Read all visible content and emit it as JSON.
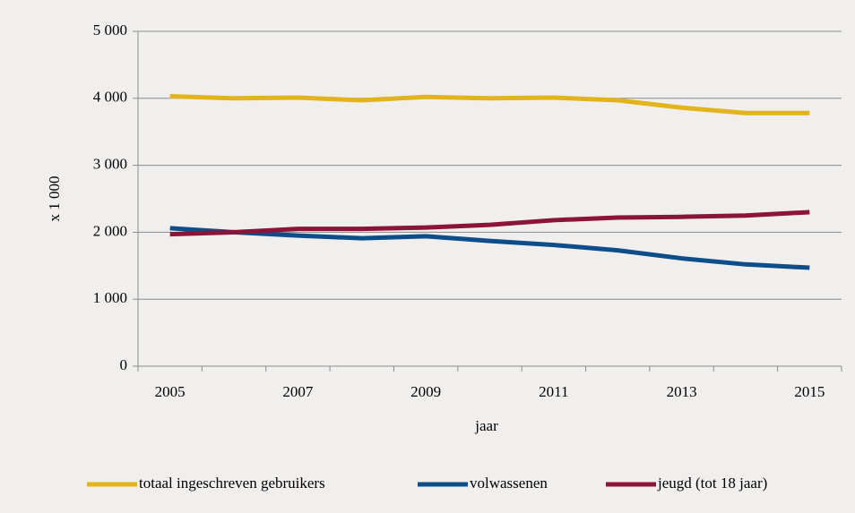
{
  "chart_data": {
    "type": "line",
    "categories": [
      "2005",
      null,
      "2007",
      null,
      "2009",
      null,
      "2011",
      null,
      "2013",
      null,
      "2015"
    ],
    "series": [
      {
        "name": "totaal ingeschreven gebruikers",
        "color": "#e2b31b",
        "values": [
          4030,
          4000,
          4010,
          3970,
          4020,
          4000,
          4010,
          3970,
          3860,
          3780,
          3780
        ]
      },
      {
        "name": "volwassenen",
        "color": "#0d4d8a",
        "values": [
          2060,
          2000,
          1950,
          1910,
          1940,
          1870,
          1810,
          1730,
          1610,
          1520,
          1470
        ]
      },
      {
        "name": "jeugd (tot 18 jaar)",
        "color": "#8b1538",
        "values": [
          1970,
          2000,
          2050,
          2050,
          2070,
          2110,
          2180,
          2220,
          2230,
          2250,
          2300
        ]
      }
    ],
    "ylim": [
      0,
      5000
    ],
    "yticks": [
      0,
      {
        "value": 1000,
        "label": "1 000"
      },
      {
        "value": 2000,
        "label": "2 000"
      },
      {
        "value": 3000,
        "label": "3 000"
      },
      {
        "value": 4000,
        "label": "4 000"
      },
      {
        "value": 5000,
        "label": "5 000"
      }
    ],
    "xlabel": "jaar",
    "ylabel": "x 1 000",
    "grid": true,
    "legend": "bottom"
  }
}
